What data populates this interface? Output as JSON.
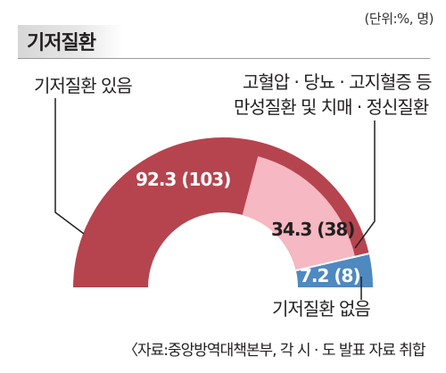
{
  "header": {
    "title": "기저질환",
    "unit_note": "(단위:%, 명)"
  },
  "labels": {
    "has_disease": "기저질환 있음",
    "sub_line1": "고혈압 · 당뇨 · 고지혈증 등",
    "sub_line2": "만성질환 및 치매 · 정신질환",
    "no_disease": "기저질환 없음"
  },
  "source": "〈자료:중앙방역대책본부, 각 시 · 도 발표 자료 취합",
  "colors": {
    "has_disease": "#b5444e",
    "subset": "#f6b8c2",
    "no_disease": "#4e89c0",
    "separator": "#ffffff"
  },
  "chart_data": {
    "type": "pie",
    "title": "기저질환",
    "unit": "(단위:%, 명)",
    "slices": [
      {
        "name": "기저질환 있음",
        "percent": 92.3,
        "count": 103,
        "label": "92.3 (103)"
      },
      {
        "name": "기저질환 없음",
        "percent": 7.2,
        "count": 8,
        "label": "7.2 (8)"
      }
    ],
    "subset": {
      "name": "고혈압 · 당뇨 · 고지혈증 등 만성질환 및 치매 · 정신질환",
      "parent": "기저질환 있음",
      "percent": 34.3,
      "count": 38,
      "label": "34.3 (38)"
    }
  }
}
